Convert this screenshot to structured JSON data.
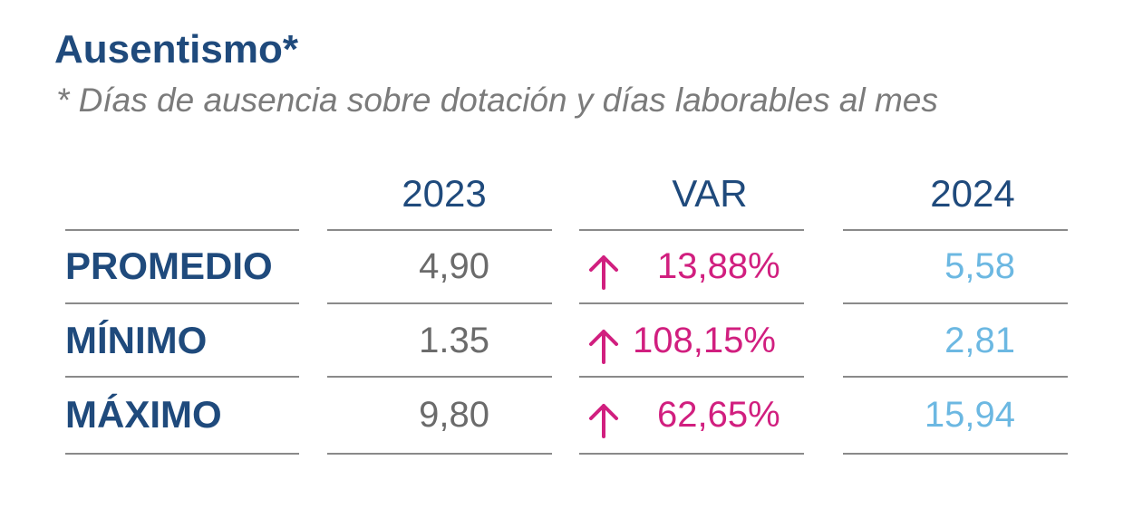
{
  "title": "Ausentismo*",
  "subtitle": "* Días de ausencia sobre dotación y días laborables al mes",
  "columns": {
    "y2023": "2023",
    "var": "VAR",
    "y2024": "2024"
  },
  "rows": [
    {
      "label": "PROMEDIO",
      "v2023": "4,90",
      "var": "13,88%",
      "v2024": "5,58"
    },
    {
      "label": "MÍNIMO",
      "v2023": "1.35",
      "var": "108,15%",
      "v2024": "2,81"
    },
    {
      "label": "MÁXIMO",
      "v2023": "9,80",
      "var": "62,65%",
      "v2024": "15,94"
    }
  ],
  "icons": {
    "var_direction": "arrow-up-icon"
  },
  "colors": {
    "title": "#1f4a7c",
    "var": "#d11f7f",
    "value_2024": "#6cb8e2",
    "value_2023": "#6b6b6b"
  }
}
